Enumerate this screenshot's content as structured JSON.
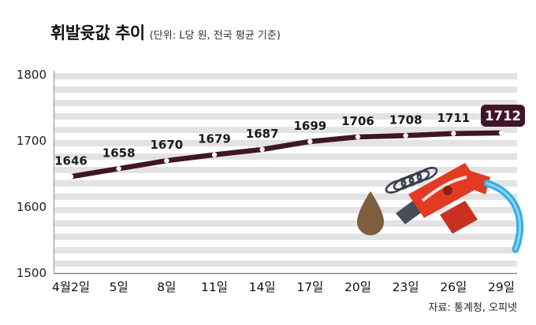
{
  "header": {
    "title": "휘발윳값 추이",
    "subtitle": "(단위: L당 원, 전국 평균 기준)"
  },
  "source": "자료: 통계청, 오피넷",
  "colors": {
    "line": "#401527",
    "badge_bg": "#401527",
    "badge_text": "#ffffff",
    "stripe": "#e3e3e3",
    "axis": "#8a8a8a",
    "tick_label": "#222222",
    "value_label": "#1a1a1a"
  },
  "chart_data": {
    "type": "line",
    "title": "휘발윳값 추이",
    "subtitle": "(단위: L당 원, 전국 평균 기준)",
    "categories": [
      "4월2일",
      "5일",
      "8일",
      "11일",
      "14일",
      "17일",
      "20일",
      "23일",
      "26일",
      "29일"
    ],
    "values": [
      1646,
      1658,
      1670,
      1679,
      1687,
      1699,
      1706,
      1708,
      1711,
      1712
    ],
    "xlabel": "",
    "ylabel": "",
    "ylim": [
      1500,
      1800
    ],
    "yticks": [
      1500,
      1600,
      1700,
      1800
    ],
    "grid": "striped-horizontal",
    "legend": "none",
    "line_color": "#401527",
    "marker": "white-dot",
    "highlight_last_value": 1712,
    "source": "자료: 통계청, 오피넷"
  }
}
